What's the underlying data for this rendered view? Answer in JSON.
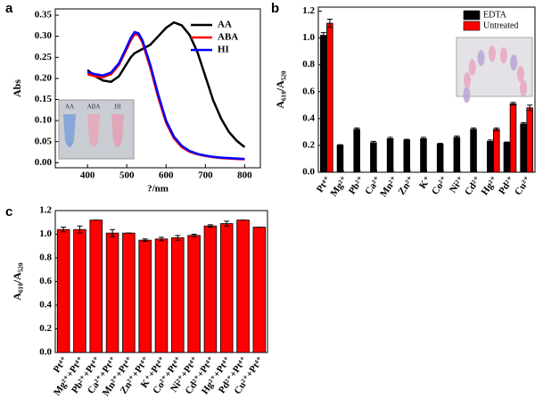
{
  "chart_data": [
    {
      "type": "line",
      "panel": "a",
      "xlabel": "?/nm",
      "ylabel": "Abs",
      "x": [
        400,
        420,
        440,
        460,
        480,
        500,
        510,
        520,
        530,
        540,
        560,
        580,
        600,
        620,
        640,
        660,
        680,
        700,
        720,
        740,
        760,
        780,
        800
      ],
      "xlim": [
        318,
        840
      ],
      "xticks": [
        400,
        500,
        600,
        700,
        800
      ],
      "ylim": [
        -0.012,
        0.365
      ],
      "yticks": [
        {
          "value": 0,
          "label": "0.00"
        },
        {
          "value": 0.05,
          "label": "0.05"
        },
        {
          "value": 0.1,
          "label": "0.10"
        },
        {
          "value": 0.15,
          "label": "0.15"
        },
        {
          "value": 0.2,
          "label": "0.20"
        },
        {
          "value": 0.25,
          "label": "0.25"
        },
        {
          "value": 0.3,
          "label": "0.30"
        },
        {
          "value": 0.35,
          "label": "0.35"
        }
      ],
      "legend": "upper right",
      "series": [
        {
          "name": "AA",
          "color": "#000000",
          "values": [
            0.22,
            0.205,
            0.195,
            0.192,
            0.205,
            0.235,
            0.25,
            0.26,
            0.265,
            0.27,
            0.28,
            0.3,
            0.32,
            0.333,
            0.326,
            0.303,
            0.262,
            0.205,
            0.148,
            0.105,
            0.073,
            0.052,
            0.037
          ]
        },
        {
          "name": "ABA",
          "color": "#ff0000",
          "values": [
            0.21,
            0.205,
            0.203,
            0.21,
            0.232,
            0.27,
            0.29,
            0.305,
            0.303,
            0.285,
            0.225,
            0.155,
            0.095,
            0.058,
            0.037,
            0.026,
            0.02,
            0.016,
            0.013,
            0.011,
            0.01,
            0.009,
            0.008
          ]
        },
        {
          "name": "HI",
          "color": "#0000ff",
          "values": [
            0.215,
            0.21,
            0.207,
            0.214,
            0.236,
            0.275,
            0.296,
            0.31,
            0.307,
            0.29,
            0.232,
            0.162,
            0.1,
            0.062,
            0.04,
            0.028,
            0.021,
            0.017,
            0.014,
            0.012,
            0.011,
            0.01,
            0.009
          ]
        }
      ],
      "inset_labels": [
        "AA",
        "ABA",
        "HI"
      ]
    },
    {
      "type": "bar",
      "panel": "b",
      "ylabel": "A₆₁₀/A₅₂₀",
      "categories": [
        "Pt⁴⁺",
        "Mg²⁺",
        "Pb²⁺",
        "Ca²⁺",
        "Mn²⁺",
        "Zn²⁺",
        "K⁺",
        "Co²⁺",
        "Ni²⁺",
        "Cd²⁺",
        "Hg²⁺",
        "Pd²⁺",
        "Cu²⁺"
      ],
      "ylim": [
        0,
        1.23
      ],
      "yticks": [
        {
          "value": 0,
          "label": "0.0"
        },
        0.2,
        0.4,
        0.6,
        0.8,
        {
          "value": 1,
          "label": "1.0"
        },
        1.2
      ],
      "legend": "upper right",
      "series": [
        {
          "name": "EDTA",
          "color": "#000000",
          "values": [
            1.02,
            0.2,
            0.32,
            0.22,
            0.25,
            0.24,
            0.25,
            0.21,
            0.26,
            0.32,
            0.23,
            0.22,
            0.36
          ],
          "errors": [
            0.02,
            0.005,
            0.01,
            0.01,
            0.01,
            0.005,
            0.01,
            0.005,
            0.01,
            0.01,
            0.01,
            0.005,
            0.01
          ]
        },
        {
          "name": "Untreated",
          "color": "#ff0000",
          "values": [
            1.11,
            null,
            null,
            null,
            null,
            null,
            null,
            null,
            null,
            null,
            0.32,
            0.51,
            0.48
          ],
          "errors": [
            0.03,
            null,
            null,
            null,
            null,
            null,
            null,
            null,
            null,
            null,
            0.01,
            0.01,
            0.02
          ]
        }
      ]
    },
    {
      "type": "bar",
      "panel": "c",
      "ylabel": "A₆₁₀/A₅₂₀",
      "categories": [
        "Pt⁴⁺",
        "Mg²⁺+Pt⁴⁺",
        "Pb²⁺+Pt⁴⁺",
        "Ca²⁺+Pt⁴⁺",
        "Mn²⁺+Pt⁴⁺",
        "Zn²⁺+Pt⁴⁺",
        "K⁺+Pt⁴⁺",
        "Co²⁺+Pt⁴⁺",
        "Ni²⁺+Pt⁴⁺",
        "Cd²⁺+Pt⁴⁺",
        "Hg²⁺+Pt⁴⁺",
        "Pd²⁺+Pt⁴⁺",
        "Cu²⁺+Pt⁴⁺"
      ],
      "ylim": [
        0,
        1.2
      ],
      "yticks": [
        {
          "value": 0,
          "label": "0.0"
        },
        0.2,
        0.4,
        0.6,
        0.8,
        {
          "value": 1,
          "label": "1.0"
        },
        1.2
      ],
      "series": [
        {
          "color": "#ff0000",
          "values": [
            1.04,
            1.04,
            1.12,
            1.01,
            1.01,
            0.95,
            0.96,
            0.97,
            0.99,
            1.07,
            1.09,
            1.12,
            1.06
          ],
          "errors": [
            0.02,
            0.03,
            0,
            0.03,
            0,
            0.01,
            0.015,
            0.02,
            0.01,
            0.01,
            0.02,
            0,
            0
          ]
        }
      ]
    }
  ]
}
